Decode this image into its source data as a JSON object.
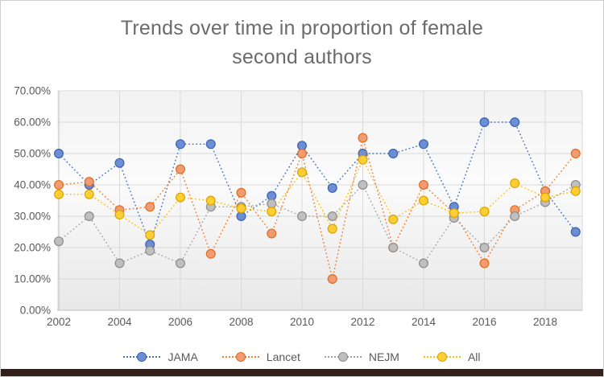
{
  "title": {
    "line1": "Trends over time in proportion of female",
    "line2": "second authors"
  },
  "chart_data": {
    "type": "line",
    "line_style": "dotted",
    "marker": "circle",
    "grid": true,
    "legend_position": "bottom",
    "x": [
      2002,
      2003,
      2004,
      2005,
      2006,
      2007,
      2008,
      2009,
      2010,
      2011,
      2012,
      2013,
      2014,
      2015,
      2016,
      2017,
      2018,
      2019
    ],
    "x_tick_labels": [
      "2002",
      "2004",
      "2006",
      "2008",
      "2010",
      "2012",
      "2014",
      "2016",
      "2018"
    ],
    "x_tick_years": [
      2002,
      2004,
      2006,
      2008,
      2010,
      2012,
      2014,
      2016,
      2018
    ],
    "y_tick_labels": [
      "0.00%",
      "10.00%",
      "20.00%",
      "30.00%",
      "40.00%",
      "50.00%",
      "60.00%",
      "70.00%"
    ],
    "y_tick_values": [
      0,
      10,
      20,
      30,
      40,
      50,
      60,
      70
    ],
    "ylim": [
      0,
      70
    ],
    "ylabel": "",
    "xlabel": "",
    "series": [
      {
        "name": "JAMA",
        "line_color": "#4472C4",
        "marker_fill": "#6C8ED4",
        "marker_stroke": "#3A62B0",
        "values": [
          50,
          40,
          47,
          21,
          53,
          53,
          30,
          36.5,
          52.5,
          39,
          50,
          50,
          53,
          33,
          60,
          60,
          38,
          25
        ]
      },
      {
        "name": "Lancet",
        "line_color": "#ED7D31",
        "marker_fill": "#F09B72",
        "marker_stroke": "#E06C1F",
        "values": [
          40,
          41,
          32,
          33,
          45,
          18,
          37.5,
          24.5,
          50,
          10,
          55,
          20,
          40,
          31,
          15,
          32,
          38,
          50
        ]
      },
      {
        "name": "NEJM",
        "line_color": "#A5A5A5",
        "marker_fill": "#BFBFBF",
        "marker_stroke": "#8C8C8C",
        "values": [
          22,
          30,
          15,
          19,
          15,
          33,
          33,
          34,
          30,
          30,
          40,
          20,
          15,
          29.5,
          20,
          30,
          34.5,
          40
        ]
      },
      {
        "name": "All",
        "line_color": "#FFC000",
        "marker_fill": "#FFCD34",
        "marker_stroke": "#D9A300",
        "values": [
          37,
          37,
          30.5,
          24,
          36,
          35,
          32.5,
          31.5,
          44,
          26,
          48,
          29,
          35,
          31,
          31.5,
          40.5,
          36,
          38
        ]
      }
    ]
  },
  "colors": {
    "title_text": "#6B6B6B",
    "axis_text": "#595959",
    "gridline": "#D9D9D9",
    "axis_line": "#BFBFBF",
    "plot_bg_top": "#F2F2F2",
    "plot_bg_mid": "#FBFBFB",
    "plot_bg_bottom": "#E8E8E8",
    "frame_border": "#CFCFCF",
    "bottom_strip": "#34201B"
  }
}
